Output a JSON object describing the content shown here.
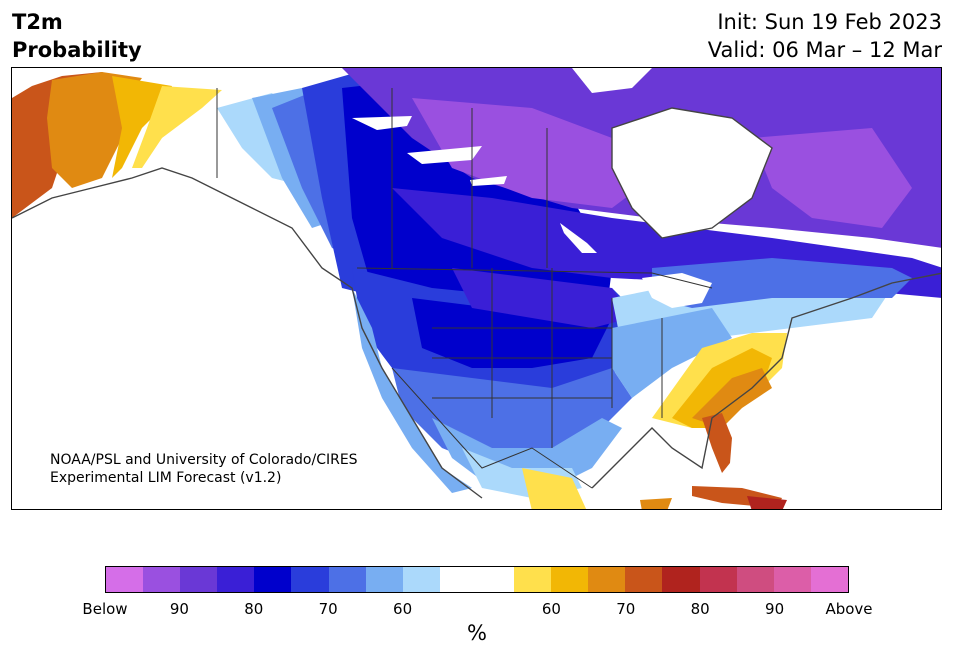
{
  "title": {
    "line1": "T2m",
    "line2": "Probability"
  },
  "dates": {
    "init": "Init: Sun 19 Feb 2023",
    "valid": "Valid: 06 Mar – 12 Mar"
  },
  "credit": {
    "line1": "NOAA/PSL and University of Colorado/CIRES",
    "line2": "Experimental LIM Forecast (v1.2)"
  },
  "colorbar": {
    "colors": [
      "#d56ee8",
      "#9a50e0",
      "#6a38d6",
      "#3a1fd6",
      "#0000cc",
      "#2a3ddb",
      "#4d70e6",
      "#78aef2",
      "#abd9fb",
      "#ffffff",
      "#ffffff",
      "#ffe04c",
      "#f2b705",
      "#e08a12",
      "#c9551a",
      "#b0231e",
      "#c2334f",
      "#cf4d80",
      "#dc5ea8",
      "#e46fd4"
    ],
    "labels": [
      "Below",
      "90",
      "80",
      "70",
      "60",
      "60",
      "70",
      "80",
      "90",
      "Above"
    ],
    "unit": "%"
  },
  "map_layers": {
    "ocean": "#ffffff",
    "land": "#ffffff",
    "below_60": "#abd9fb",
    "below_70": "#78aef2",
    "below_70b": "#4d70e6",
    "below_75": "#2a3ddb",
    "below_80": "#0000cc",
    "below_85": "#3a1fd6",
    "below_88": "#6a38d6",
    "below_90": "#9a50e0",
    "above_60": "#ffe04c",
    "above_65": "#f2b705",
    "above_70": "#e08a12",
    "above_75": "#c9551a",
    "above_80": "#b0231e",
    "border": "#333333"
  }
}
